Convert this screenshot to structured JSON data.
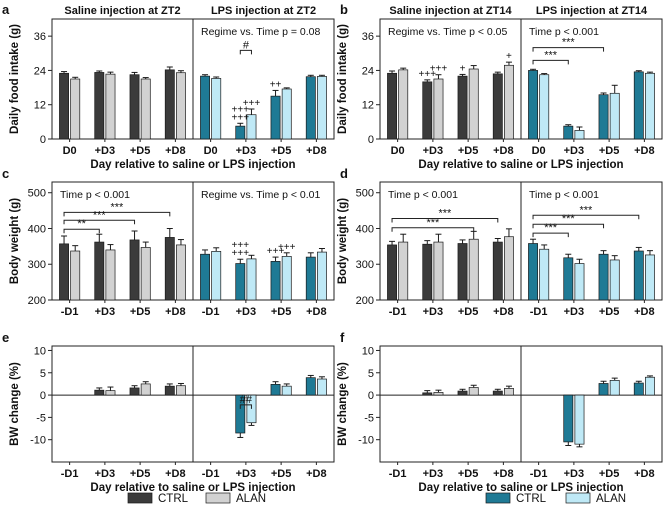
{
  "colors": {
    "saline_ctrl": "#3b3b3b",
    "saline_alan": "#d2d2d2",
    "lps_ctrl": "#1f7a95",
    "lps_alan": "#bfe9f6",
    "axis": "#222222"
  },
  "common": {
    "xlabel": "Day relative to saline or LPS injection"
  },
  "legend": [
    {
      "label": "CTRL",
      "key": "saline_ctrl"
    },
    {
      "label": "ALAN",
      "key": "saline_alan"
    },
    {
      "label": "CTRL",
      "key": "lps_ctrl"
    },
    {
      "label": "ALAN",
      "key": "lps_alan"
    }
  ],
  "chart_data": [
    {
      "id": "a",
      "type": "bar",
      "ylabel": "Daily food intake (g)",
      "ylim": [
        0,
        42
      ],
      "yticks": [
        0,
        12,
        24,
        36
      ],
      "categories": [
        "D0",
        "+D3",
        "+D5",
        "+D8"
      ],
      "show_xlabel": true,
      "subpanels": [
        {
          "title": "Saline injection at ZT2",
          "scheme": "saline",
          "stat": "",
          "series": [
            {
              "name": "CTRL",
              "values": [
                23,
                23.3,
                22.5,
                24.2
              ],
              "errors": [
                0.6,
                0.5,
                0.8,
                1.0
              ]
            },
            {
              "name": "ALAN",
              "values": [
                21,
                22.7,
                21,
                23.2
              ],
              "errors": [
                0.6,
                0.7,
                0.5,
                0.7
              ]
            }
          ],
          "sig_lines": [],
          "above": []
        },
        {
          "title": "LPS injection at ZT2",
          "scheme": "lps",
          "stat": "Regime vs. Time p = 0.08",
          "series": [
            {
              "name": "CTRL",
              "values": [
                22,
                4.5,
                15,
                21.8
              ],
              "errors": [
                0.5,
                1.0,
                2.0,
                0.5
              ]
            },
            {
              "name": "ALAN",
              "values": [
                21.2,
                8.5,
                17.5,
                21.9
              ],
              "errors": [
                0.5,
                2.0,
                0.4,
                0.4
              ]
            }
          ],
          "sig_lines": [
            {
              "from": [
                1,
                0
              ],
              "to": [
                1,
                1
              ],
              "level": 31,
              "label": "#"
            }
          ],
          "above": [
            {
              "cat": 1,
              "s": 0,
              "text": "+++"
            },
            {
              "cat": 1,
              "s": 0,
              "text": "+++"
            },
            {
              "cat": 1,
              "s": 1,
              "text": "+++"
            },
            {
              "cat": 2,
              "s": 0,
              "text": "++"
            }
          ]
        }
      ]
    },
    {
      "id": "b",
      "type": "bar",
      "ylabel": "Daily food intake (g)",
      "ylim": [
        0,
        42
      ],
      "yticks": [
        0,
        12,
        24,
        36
      ],
      "categories": [
        "D0",
        "+D3",
        "+D5",
        "+D8"
      ],
      "show_xlabel": true,
      "subpanels": [
        {
          "title": "Saline injection at ZT14",
          "scheme": "saline",
          "stat": "Regime vs. Time p < 0.05",
          "series": [
            {
              "name": "CTRL",
              "values": [
                23,
                20,
                22,
                22.8
              ],
              "errors": [
                0.8,
                0.7,
                0.6,
                0.6
              ]
            },
            {
              "name": "ALAN",
              "values": [
                24.2,
                21,
                24.5,
                25.8
              ],
              "errors": [
                0.6,
                1.5,
                1.2,
                1.1
              ]
            }
          ],
          "sig_lines": [],
          "above": [
            {
              "cat": 1,
              "s": 0,
              "text": "+++"
            },
            {
              "cat": 1,
              "s": 1,
              "text": "+++"
            },
            {
              "cat": 2,
              "s": 0,
              "text": "+"
            },
            {
              "cat": 3,
              "s": 1,
              "text": "+"
            }
          ]
        },
        {
          "title": "LPS injection at ZT14",
          "scheme": "lps",
          "stat": "Time p < 0.001",
          "series": [
            {
              "name": "CTRL",
              "values": [
                24,
                4.5,
                15.5,
                23.5
              ],
              "errors": [
                0.4,
                0.5,
                0.6,
                0.4
              ]
            },
            {
              "name": "ALAN",
              "values": [
                22.5,
                3,
                16,
                23
              ],
              "errors": [
                0.4,
                1.2,
                2.8,
                0.4
              ]
            }
          ],
          "sig_lines": [
            {
              "from": [
                0,
                0
              ],
              "to": [
                1,
                0
              ],
              "level": 27.5,
              "label": "***"
            },
            {
              "from": [
                0,
                0
              ],
              "to": [
                2,
                0
              ],
              "level": 32,
              "label": "***"
            }
          ],
          "above": []
        }
      ]
    },
    {
      "id": "c",
      "type": "bar",
      "ylabel": "Body weight (g)",
      "ylim": [
        200,
        530
      ],
      "yticks": [
        200,
        300,
        400,
        500
      ],
      "categories": [
        "-D1",
        "+D3",
        "+D5",
        "+D8"
      ],
      "show_xlabel": false,
      "subpanels": [
        {
          "title": "",
          "scheme": "saline",
          "stat": "Time p < 0.001",
          "series": [
            {
              "name": "CTRL",
              "values": [
                357,
                362,
                368,
                375
              ],
              "errors": [
                22,
                22,
                25,
                25
              ]
            },
            {
              "name": "ALAN",
              "values": [
                337,
                340,
                347,
                354
              ],
              "errors": [
                15,
                15,
                15,
                15
              ]
            }
          ],
          "sig_lines": [
            {
              "from": [
                0,
                0
              ],
              "to": [
                1,
                0
              ],
              "level": 398,
              "label": "**"
            },
            {
              "from": [
                0,
                0
              ],
              "to": [
                2,
                0
              ],
              "level": 423,
              "label": "***"
            },
            {
              "from": [
                0,
                0
              ],
              "to": [
                3,
                0
              ],
              "level": 445,
              "label": "***"
            }
          ],
          "above": []
        },
        {
          "title": "",
          "scheme": "lps",
          "stat": "Regime vs. Time p < 0.01",
          "series": [
            {
              "name": "CTRL",
              "values": [
                328,
                302,
                308,
                320
              ],
              "errors": [
                12,
                12,
                12,
                12
              ]
            },
            {
              "name": "ALAN",
              "values": [
                336,
                315,
                322,
                334
              ],
              "errors": [
                10,
                10,
                10,
                10
              ]
            }
          ],
          "sig_lines": [],
          "above": [
            {
              "cat": 1,
              "s": 0,
              "text": "+++"
            },
            {
              "cat": 1,
              "s": 0,
              "text": "+++"
            },
            {
              "cat": 2,
              "s": 0,
              "text": "+++"
            },
            {
              "cat": 2,
              "s": 1,
              "text": "+++"
            }
          ]
        }
      ]
    },
    {
      "id": "d",
      "type": "bar",
      "ylabel": "Body weight (g)",
      "ylim": [
        200,
        530
      ],
      "yticks": [
        200,
        300,
        400,
        500
      ],
      "categories": [
        "-D1",
        "+D3",
        "+D5",
        "+D8"
      ],
      "show_xlabel": false,
      "subpanels": [
        {
          "title": "",
          "scheme": "saline",
          "stat": "Time p < 0.001",
          "series": [
            {
              "name": "CTRL",
              "values": [
                354,
                356,
                358,
                362
              ],
              "errors": [
                10,
                10,
                10,
                10
              ]
            },
            {
              "name": "ALAN",
              "values": [
                362,
                362,
                370,
                377
              ],
              "errors": [
                22,
                22,
                22,
                22
              ]
            }
          ],
          "sig_lines": [
            {
              "from": [
                0,
                0
              ],
              "to": [
                2,
                1
              ],
              "level": 402,
              "label": "***"
            },
            {
              "from": [
                0,
                0
              ],
              "to": [
                3,
                0
              ],
              "level": 428,
              "label": "***"
            }
          ],
          "above": []
        },
        {
          "title": "",
          "scheme": "lps",
          "stat": "Time p < 0.001",
          "series": [
            {
              "name": "CTRL",
              "values": [
                358,
                318,
                328,
                337
              ],
              "errors": [
                12,
                10,
                10,
                10
              ]
            },
            {
              "name": "ALAN",
              "values": [
                342,
                302,
                312,
                326
              ],
              "errors": [
                12,
                12,
                12,
                12
              ]
            }
          ],
          "sig_lines": [
            {
              "from": [
                0,
                0
              ],
              "to": [
                1,
                0
              ],
              "level": 387,
              "label": "***"
            },
            {
              "from": [
                0,
                0
              ],
              "to": [
                2,
                0
              ],
              "level": 412,
              "label": "***"
            },
            {
              "from": [
                0,
                0
              ],
              "to": [
                3,
                0
              ],
              "level": 437,
              "label": "***"
            }
          ],
          "above": []
        }
      ]
    },
    {
      "id": "e",
      "type": "bar",
      "ylabel": "BW change (%)",
      "ylim": [
        -15,
        11
      ],
      "yticks": [
        -10,
        -5,
        0,
        5,
        10
      ],
      "categories": [
        "-D1",
        "+D3",
        "+D5",
        "+D8"
      ],
      "show_xlabel": true,
      "subpanels": [
        {
          "title": "",
          "scheme": "saline",
          "stat": "",
          "series": [
            {
              "name": "CTRL",
              "values": [
                null,
                1.1,
                1.6,
                2.0
              ],
              "errors": [
                null,
                0.5,
                0.5,
                0.5
              ]
            },
            {
              "name": "ALAN",
              "values": [
                null,
                1.0,
                2.5,
                2.1
              ],
              "errors": [
                null,
                0.8,
                0.5,
                0.5
              ]
            }
          ],
          "sig_lines": [],
          "above": []
        },
        {
          "title": "",
          "scheme": "lps",
          "stat": "",
          "series": [
            {
              "name": "CTRL",
              "values": [
                null,
                -8.5,
                2.4,
                3.9
              ],
              "errors": [
                null,
                1.0,
                0.6,
                0.5
              ]
            },
            {
              "name": "ALAN",
              "values": [
                null,
                -6.2,
                2.0,
                3.6
              ],
              "errors": [
                null,
                0.6,
                0.5,
                0.5
              ]
            }
          ],
          "sig_lines": [
            {
              "from": [
                1,
                0
              ],
              "to": [
                1,
                1
              ],
              "level": -2.2,
              "label": "##"
            }
          ],
          "above": []
        }
      ]
    },
    {
      "id": "f",
      "type": "bar",
      "ylabel": "BW change (%)",
      "ylim": [
        -15,
        11
      ],
      "yticks": [
        -10,
        -5,
        0,
        5,
        10
      ],
      "categories": [
        "-D1",
        "+D3",
        "+D5",
        "+D8"
      ],
      "show_xlabel": true,
      "subpanels": [
        {
          "title": "",
          "scheme": "saline",
          "stat": "",
          "series": [
            {
              "name": "CTRL",
              "values": [
                null,
                0.5,
                0.9,
                0.9
              ],
              "errors": [
                null,
                0.5,
                0.4,
                0.4
              ]
            },
            {
              "name": "ALAN",
              "values": [
                null,
                0.6,
                1.7,
                1.5
              ],
              "errors": [
                null,
                0.5,
                0.5,
                0.5
              ]
            }
          ],
          "sig_lines": [],
          "above": []
        },
        {
          "title": "",
          "scheme": "lps",
          "stat": "",
          "series": [
            {
              "name": "CTRL",
              "values": [
                null,
                -10.5,
                2.6,
                2.7
              ],
              "errors": [
                null,
                0.8,
                0.5,
                0.4
              ]
            },
            {
              "name": "ALAN",
              "values": [
                null,
                -11.0,
                3.3,
                4.0
              ],
              "errors": [
                null,
                0.6,
                0.5,
                0.3
              ]
            }
          ],
          "sig_lines": [],
          "above": []
        }
      ]
    }
  ]
}
